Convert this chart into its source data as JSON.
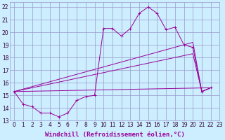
{
  "background_color": "#cceeff",
  "grid_color": "#9999cc",
  "line_color": "#990099",
  "xlim": [
    -0.5,
    23
  ],
  "ylim": [
    13,
    22.4
  ],
  "xticks": [
    0,
    1,
    2,
    3,
    4,
    5,
    6,
    7,
    8,
    9,
    10,
    11,
    12,
    13,
    14,
    15,
    16,
    17,
    18,
    19,
    20,
    21,
    22,
    23
  ],
  "yticks": [
    13,
    14,
    15,
    16,
    17,
    18,
    19,
    20,
    21,
    22
  ],
  "xlabel": "Windchill (Refroidissement éolien,°C)",
  "series": [
    {
      "x": [
        0,
        1,
        2,
        3,
        4,
        5,
        6,
        7,
        8,
        9,
        10,
        11,
        12,
        13,
        14,
        15,
        16,
        17,
        18,
        19,
        20,
        21,
        22
      ],
      "y": [
        15.3,
        14.3,
        14.1,
        13.6,
        13.6,
        13.3,
        13.6,
        14.6,
        14.9,
        15.0,
        20.3,
        20.3,
        19.7,
        20.3,
        21.5,
        22.0,
        21.5,
        20.2,
        20.4,
        19.0,
        18.8,
        15.3,
        15.6
      ],
      "marker": "+"
    },
    {
      "x": [
        0,
        20,
        21,
        22
      ],
      "y": [
        15.3,
        19.2,
        15.3,
        15.6
      ],
      "marker": null
    },
    {
      "x": [
        0,
        20,
        21,
        22
      ],
      "y": [
        15.3,
        18.3,
        15.3,
        15.6
      ],
      "marker": null
    },
    {
      "x": [
        0,
        22
      ],
      "y": [
        15.3,
        15.6
      ],
      "marker": null
    }
  ],
  "tick_fontsize": 5.5,
  "xlabel_fontsize": 6.5
}
